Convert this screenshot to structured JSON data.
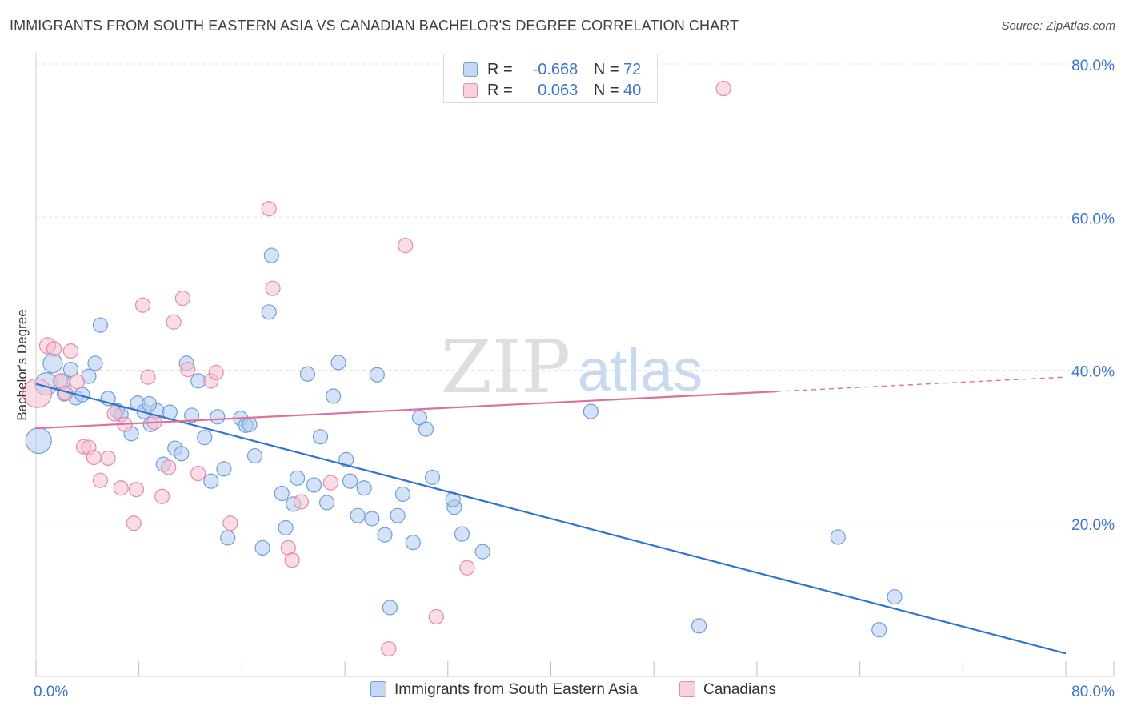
{
  "title": "IMMIGRANTS FROM SOUTH EASTERN ASIA VS CANADIAN BACHELOR'S DEGREE CORRELATION CHART",
  "source": "Source: ZipAtlas.com",
  "watermark": {
    "zip": "ZIP",
    "atlas": "atlas"
  },
  "legend_top": {
    "rows": [
      {
        "r_label": "R =",
        "r_value": "-0.668",
        "n_label": "N =",
        "n_value": "72"
      },
      {
        "r_label": "R =",
        "r_value": "0.063",
        "n_label": "N =",
        "n_value": "40"
      }
    ]
  },
  "colors": {
    "blue_fill": "#aecbef",
    "blue_stroke": "#6f9fd8",
    "blue_line": "#2f74cf",
    "pink_fill": "#f6bfd0",
    "pink_stroke": "#e58aa9",
    "pink_line": "#e0709a",
    "axis_text": "#3b74c9",
    "grid": "#e3e3e3"
  },
  "chart_data": {
    "type": "scatter",
    "title": "IMMIGRANTS FROM SOUTH EASTERN ASIA VS CANADIAN BACHELOR'S DEGREE CORRELATION CHART",
    "xlabel": "",
    "ylabel": "Bachelor's Degree",
    "xlim": [
      0,
      80
    ],
    "ylim": [
      0,
      80
    ],
    "x_tick_labels": [
      "0.0%",
      "80.0%"
    ],
    "y_tick_labels": [
      "20.0%",
      "40.0%",
      "60.0%",
      "80.0%"
    ],
    "y_ticks": [
      20,
      40,
      60,
      80
    ],
    "legend_position": "top-center",
    "series": [
      {
        "name": "Immigrants from South Eastern Asia",
        "r": -0.668,
        "n": 72,
        "trend": {
          "x0": 0,
          "y0": 38.2,
          "x1": 80,
          "y1": 3.0,
          "x_solid_end": 80
        },
        "points": [
          [
            0.2,
            30.8,
            16
          ],
          [
            0.8,
            38.2,
            14
          ],
          [
            1.3,
            40.9,
            12
          ],
          [
            2.0,
            38.5,
            10
          ],
          [
            2.7,
            40.1,
            9
          ],
          [
            3.1,
            36.4,
            9
          ],
          [
            3.6,
            36.8,
            9
          ],
          [
            4.1,
            39.2,
            9
          ],
          [
            4.6,
            40.9,
            9
          ],
          [
            5.0,
            45.9,
            9
          ],
          [
            5.6,
            36.3,
            9
          ],
          [
            6.3,
            34.7,
            9
          ],
          [
            6.6,
            34.2,
            9
          ],
          [
            7.4,
            31.7,
            9
          ],
          [
            7.9,
            35.7,
            9
          ],
          [
            8.4,
            34.6,
            9
          ],
          [
            8.9,
            32.9,
            9
          ],
          [
            9.4,
            34.7,
            9
          ],
          [
            9.9,
            27.7,
            9
          ],
          [
            10.4,
            34.5,
            9
          ],
          [
            10.8,
            29.8,
            9
          ],
          [
            11.3,
            29.1,
            9
          ],
          [
            11.7,
            40.9,
            9
          ],
          [
            12.1,
            34.1,
            9
          ],
          [
            12.6,
            38.6,
            9
          ],
          [
            13.1,
            31.2,
            9
          ],
          [
            13.6,
            25.5,
            9
          ],
          [
            14.1,
            33.9,
            9
          ],
          [
            14.6,
            27.1,
            9
          ],
          [
            14.9,
            18.1,
            9
          ],
          [
            15.9,
            33.7,
            9
          ],
          [
            16.3,
            32.8,
            9
          ],
          [
            16.6,
            32.9,
            9
          ],
          [
            17.0,
            28.8,
            9
          ],
          [
            17.6,
            16.8,
            9
          ],
          [
            18.1,
            47.6,
            9
          ],
          [
            18.3,
            55.0,
            9
          ],
          [
            19.1,
            23.9,
            9
          ],
          [
            19.4,
            19.4,
            9
          ],
          [
            20.0,
            22.5,
            9
          ],
          [
            20.3,
            25.9,
            9
          ],
          [
            21.1,
            39.5,
            9
          ],
          [
            21.6,
            25.0,
            9
          ],
          [
            22.1,
            31.3,
            9
          ],
          [
            22.6,
            22.7,
            9
          ],
          [
            23.1,
            36.6,
            9
          ],
          [
            23.5,
            41.0,
            9
          ],
          [
            24.1,
            28.3,
            9
          ],
          [
            24.4,
            25.5,
            9
          ],
          [
            25.0,
            21.0,
            9
          ],
          [
            25.5,
            24.6,
            9
          ],
          [
            26.1,
            20.6,
            9
          ],
          [
            26.5,
            39.4,
            9
          ],
          [
            27.1,
            18.5,
            9
          ],
          [
            27.5,
            9.0,
            9
          ],
          [
            28.1,
            21.0,
            9
          ],
          [
            28.5,
            23.8,
            9
          ],
          [
            29.3,
            17.5,
            9
          ],
          [
            29.8,
            33.8,
            9
          ],
          [
            30.3,
            32.3,
            9
          ],
          [
            30.8,
            26.0,
            9
          ],
          [
            32.5,
            22.1,
            9
          ],
          [
            32.4,
            23.1,
            9
          ],
          [
            33.1,
            18.6,
            9
          ],
          [
            34.7,
            16.3,
            9
          ],
          [
            43.1,
            34.6,
            9
          ],
          [
            51.5,
            6.6,
            9
          ],
          [
            62.3,
            18.2,
            9
          ],
          [
            65.5,
            6.1,
            9
          ],
          [
            66.7,
            10.4,
            9
          ],
          [
            2.2,
            36.9,
            9
          ],
          [
            8.8,
            35.6,
            9
          ]
        ]
      },
      {
        "name": "Canadians",
        "r": 0.063,
        "n": 40,
        "trend": {
          "x0": 0,
          "y0": 32.4,
          "x1": 80,
          "y1": 39.1,
          "x_solid_end": 57.5
        },
        "points": [
          [
            0.1,
            37.0,
            18
          ],
          [
            0.9,
            43.2,
            10
          ],
          [
            1.4,
            42.8,
            9
          ],
          [
            1.9,
            38.6,
            9
          ],
          [
            2.3,
            37.0,
            9
          ],
          [
            2.7,
            42.5,
            9
          ],
          [
            3.2,
            38.5,
            9
          ],
          [
            3.7,
            30.0,
            9
          ],
          [
            4.1,
            29.9,
            9
          ],
          [
            4.5,
            28.6,
            9
          ],
          [
            5.0,
            25.6,
            9
          ],
          [
            5.6,
            28.5,
            9
          ],
          [
            6.1,
            34.3,
            9
          ],
          [
            6.6,
            24.6,
            9
          ],
          [
            6.9,
            32.9,
            9
          ],
          [
            7.6,
            20.0,
            9
          ],
          [
            7.8,
            24.4,
            9
          ],
          [
            8.3,
            48.5,
            9
          ],
          [
            8.7,
            39.1,
            9
          ],
          [
            9.2,
            33.2,
            9
          ],
          [
            9.8,
            23.5,
            9
          ],
          [
            10.3,
            27.3,
            9
          ],
          [
            10.7,
            46.3,
            9
          ],
          [
            11.4,
            49.4,
            9
          ],
          [
            11.8,
            40.1,
            9
          ],
          [
            12.6,
            26.5,
            9
          ],
          [
            13.6,
            38.6,
            9
          ],
          [
            14.0,
            39.7,
            9
          ],
          [
            15.1,
            20.0,
            9
          ],
          [
            18.1,
            61.1,
            9
          ],
          [
            18.4,
            50.7,
            9
          ],
          [
            19.6,
            16.8,
            9
          ],
          [
            19.9,
            15.2,
            9
          ],
          [
            20.6,
            22.8,
            9
          ],
          [
            22.9,
            25.3,
            9
          ],
          [
            27.4,
            3.6,
            9
          ],
          [
            28.7,
            56.3,
            9
          ],
          [
            31.1,
            7.8,
            9
          ],
          [
            33.5,
            14.2,
            9
          ],
          [
            53.4,
            76.8,
            9
          ]
        ]
      }
    ]
  },
  "bottom_legend": [
    "Immigrants from South Eastern Asia",
    "Canadians"
  ]
}
